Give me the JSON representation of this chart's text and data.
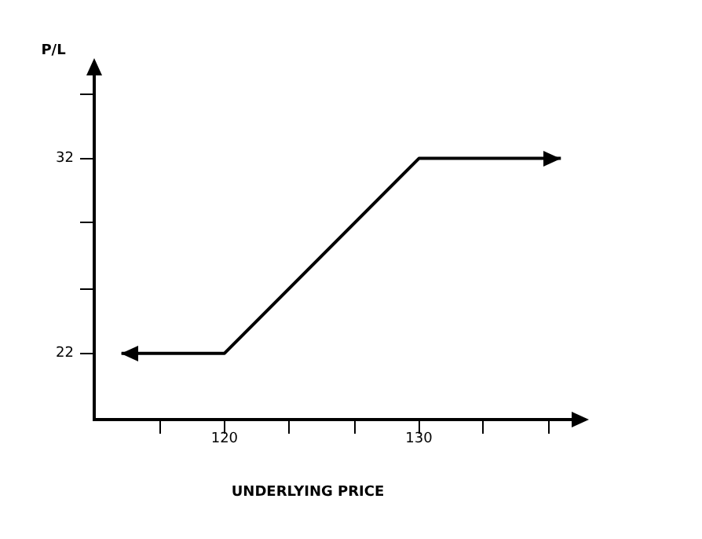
{
  "chart_data": {
    "type": "line",
    "xlabel": "UNDERLYING PRICE",
    "ylabel": "P/L",
    "x": [
      114.7,
      120,
      130,
      137.3
    ],
    "series": [
      {
        "color": "#000000",
        "values": [
          22,
          22,
          32,
          32
        ]
      }
    ],
    "xlim": [
      113.3,
      138.5
    ],
    "ylim": [
      18.6,
      36.9
    ],
    "xticks": [
      {
        "value": 116.7,
        "label": null
      },
      120,
      {
        "value": 123.3,
        "label": null
      },
      {
        "value": 126.7,
        "label": null
      },
      130,
      {
        "value": 133.3,
        "label": null
      },
      {
        "value": 136.7,
        "label": null
      }
    ],
    "yticks": [
      22,
      {
        "value": 25.3,
        "label": null
      },
      {
        "value": 28.7,
        "label": null
      },
      32,
      {
        "value": 35.3,
        "label": null
      }
    ],
    "grid": false,
    "legend": false,
    "marker": "none",
    "line_style": "solid"
  }
}
